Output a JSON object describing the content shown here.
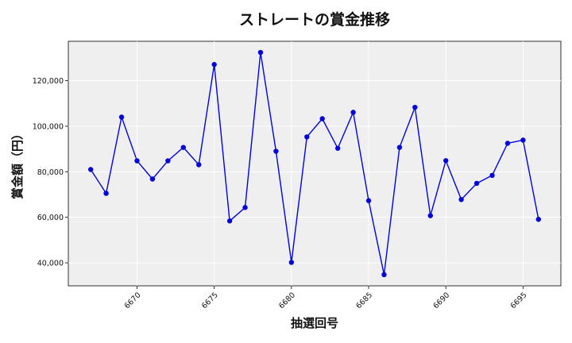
{
  "chart_data": {
    "type": "line",
    "title": "ストレートの賞金推移",
    "xlabel": "抽選回号",
    "ylabel": "賞金額（円）",
    "x": [
      6667,
      6668,
      6669,
      6670,
      6671,
      6672,
      6673,
      6674,
      6675,
      6676,
      6677,
      6678,
      6679,
      6680,
      6681,
      6682,
      6683,
      6684,
      6685,
      6686,
      6687,
      6688,
      6689,
      6690,
      6691,
      6692,
      6693,
      6694,
      6695,
      6696
    ],
    "series": [
      {
        "values": [
          81000,
          70500,
          104000,
          84800,
          76800,
          84800,
          90700,
          83100,
          127100,
          58400,
          64300,
          132400,
          89000,
          40200,
          95300,
          103300,
          90300,
          106100,
          67300,
          34800,
          90700,
          108300,
          60700,
          84900,
          67800,
          74900,
          78400,
          92500,
          93900,
          59100
        ],
        "color": "#0000dd"
      }
    ],
    "xticks": [
      6670,
      6675,
      6680,
      6685,
      6690,
      6695
    ],
    "xtick_labels": [
      "6670",
      "6675",
      "6680",
      "6685",
      "6690",
      "6695"
    ],
    "yticks": [
      40000,
      60000,
      80000,
      100000,
      120000
    ],
    "ytick_labels": [
      "40,000",
      "60,000",
      "80,000",
      "100,000",
      "120,000"
    ],
    "xlim": [
      6665.55,
      6697.45
    ],
    "ylim": [
      29900,
      137300
    ],
    "grid": true,
    "background": "#efefef",
    "grid_color": "#ffffff"
  }
}
